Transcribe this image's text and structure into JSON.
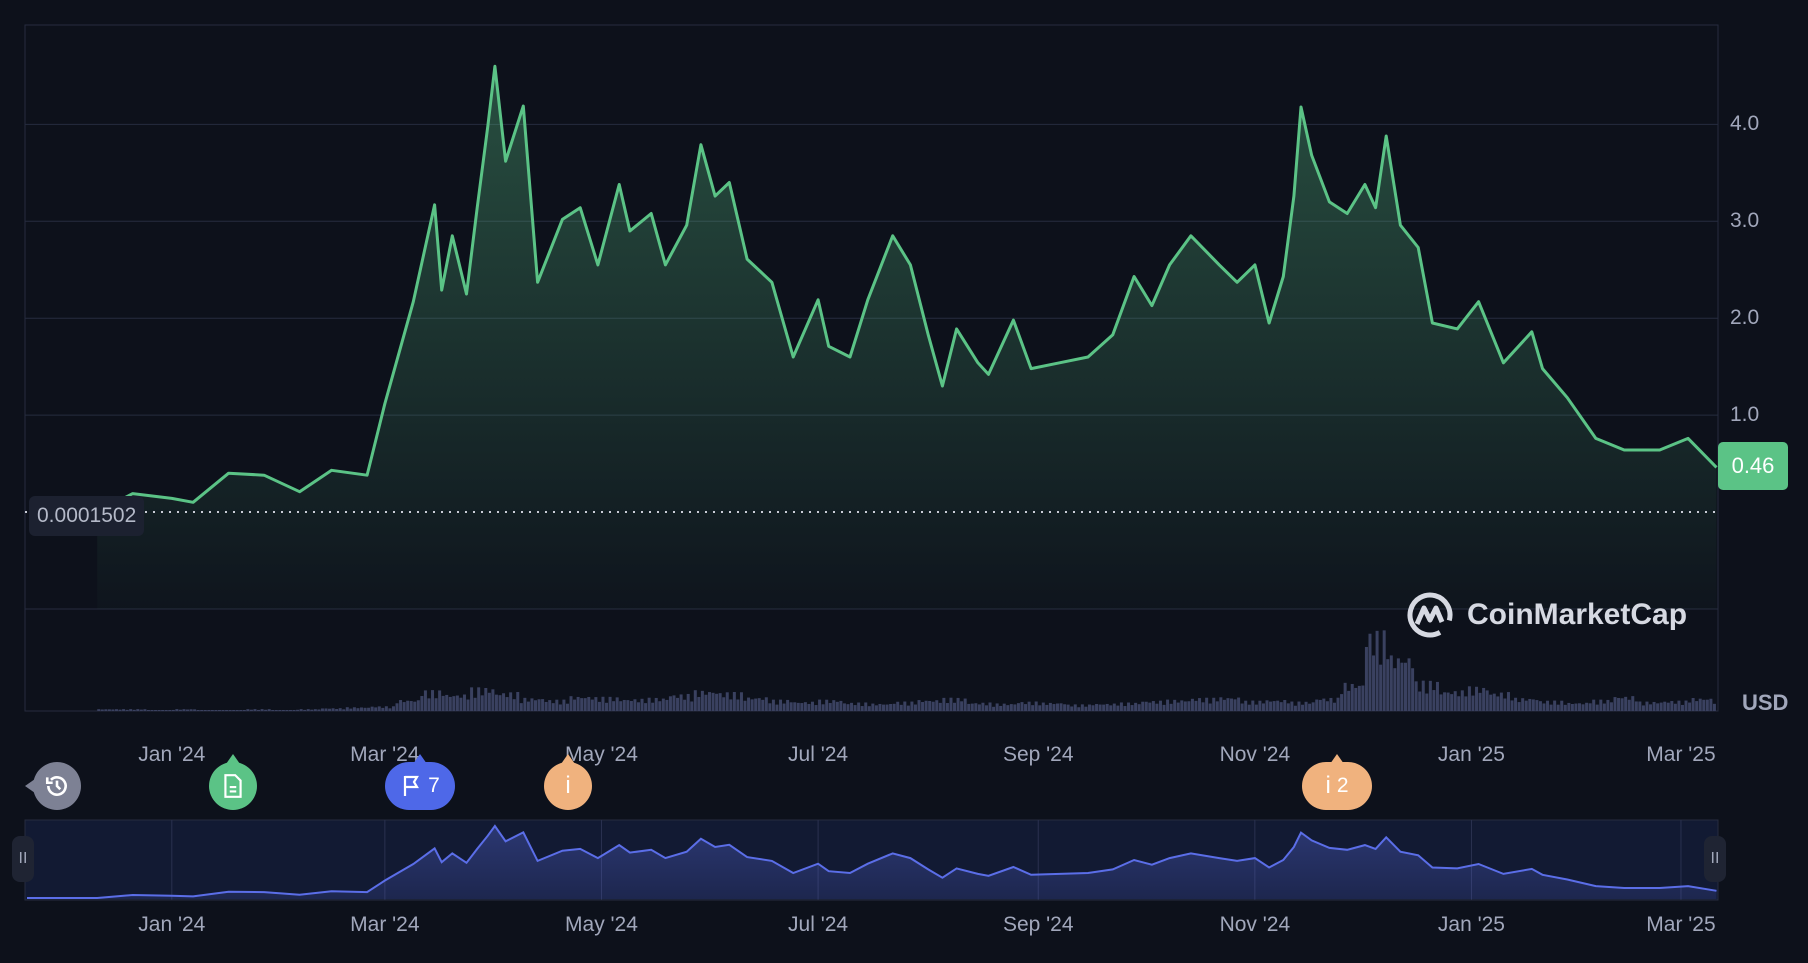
{
  "chart_data": {
    "type": "line",
    "title": "",
    "currency_label": "USD",
    "current_price_label": "0.46",
    "baseline_label": "0.0001502",
    "watermark": "CoinMarketCap",
    "ylim": [
      0,
      4.6
    ],
    "yticks": [
      "1.0",
      "2.0",
      "3.0",
      "4.0"
    ],
    "ytick_values": [
      1,
      2,
      3,
      4
    ],
    "xticks": [
      {
        "label": "Jan '24",
        "date": "2024-01-01"
      },
      {
        "label": "Mar '24",
        "date": "2024-03-01"
      },
      {
        "label": "May '24",
        "date": "2024-05-01"
      },
      {
        "label": "Jul '24",
        "date": "2024-07-01"
      },
      {
        "label": "Sep '24",
        "date": "2024-09-01"
      },
      {
        "label": "Nov '24",
        "date": "2024-11-01"
      },
      {
        "label": "Jan '25",
        "date": "2025-01-01"
      },
      {
        "label": "Mar '25",
        "date": "2025-03-01"
      }
    ],
    "colors": {
      "line": "#5bc386",
      "navigator_line": "#5b6ee8",
      "volume": "#3a4160"
    },
    "series": [
      {
        "name": "Price (USD)",
        "x": [
          "2023-12-11",
          "2023-12-21",
          "2024-01-01",
          "2024-01-07",
          "2024-01-17",
          "2024-01-27",
          "2024-02-06",
          "2024-02-15",
          "2024-02-25",
          "2024-03-01",
          "2024-03-09",
          "2024-03-15",
          "2024-03-17",
          "2024-03-20",
          "2024-03-24",
          "2024-03-27",
          "2024-03-30",
          "2024-04-01",
          "2024-04-04",
          "2024-04-09",
          "2024-04-13",
          "2024-04-20",
          "2024-04-25",
          "2024-04-30",
          "2024-05-06",
          "2024-05-09",
          "2024-05-15",
          "2024-05-19",
          "2024-05-25",
          "2024-05-29",
          "2024-06-02",
          "2024-06-06",
          "2024-06-11",
          "2024-06-18",
          "2024-06-24",
          "2024-07-01",
          "2024-07-04",
          "2024-07-10",
          "2024-07-15",
          "2024-07-22",
          "2024-07-27",
          "2024-08-01",
          "2024-08-05",
          "2024-08-09",
          "2024-08-15",
          "2024-08-18",
          "2024-08-25",
          "2024-08-30",
          "2024-09-07",
          "2024-09-15",
          "2024-09-22",
          "2024-09-28",
          "2024-10-03",
          "2024-10-08",
          "2024-10-14",
          "2024-10-22",
          "2024-10-27",
          "2024-11-01",
          "2024-11-05",
          "2024-11-09",
          "2024-11-12",
          "2024-11-14",
          "2024-11-17",
          "2024-11-22",
          "2024-11-27",
          "2024-12-02",
          "2024-12-05",
          "2024-12-08",
          "2024-12-12",
          "2024-12-17",
          "2024-12-21",
          "2024-12-28",
          "2025-01-03",
          "2025-01-10",
          "2025-01-18",
          "2025-01-21",
          "2025-01-28",
          "2025-02-05",
          "2025-02-13",
          "2025-02-23",
          "2025-03-03",
          "2025-03-11"
        ],
        "values": [
          0.0002,
          0.19,
          0.14,
          0.1,
          0.4,
          0.38,
          0.21,
          0.43,
          0.38,
          1.12,
          2.17,
          3.17,
          2.29,
          2.85,
          2.25,
          3.14,
          3.98,
          4.6,
          3.62,
          4.19,
          2.37,
          3.02,
          3.14,
          2.55,
          3.38,
          2.9,
          3.08,
          2.55,
          2.96,
          3.79,
          3.26,
          3.4,
          2.61,
          2.37,
          1.6,
          2.19,
          1.71,
          1.6,
          2.19,
          2.85,
          2.55,
          1.83,
          1.3,
          1.89,
          1.54,
          1.42,
          1.98,
          1.48,
          1.54,
          1.6,
          1.83,
          2.43,
          2.13,
          2.55,
          2.85,
          2.55,
          2.37,
          2.55,
          1.95,
          2.43,
          3.26,
          4.18,
          3.68,
          3.2,
          3.08,
          3.38,
          3.14,
          3.88,
          2.96,
          2.73,
          1.95,
          1.89,
          2.17,
          1.54,
          1.86,
          1.48,
          1.18,
          0.76,
          0.64,
          0.64,
          0.76,
          0.46
        ]
      }
    ],
    "volume_relative": {
      "start": "2023-12-11",
      "step_days": 7,
      "values": [
        2,
        2,
        1,
        2,
        1,
        1,
        2,
        1,
        2,
        3,
        4,
        5,
        12,
        22,
        18,
        25,
        20,
        14,
        12,
        16,
        15,
        13,
        14,
        18,
        22,
        20,
        15,
        12,
        10,
        12,
        9,
        8,
        10,
        12,
        14,
        9,
        8,
        10,
        9,
        7,
        8,
        9,
        11,
        12,
        14,
        15,
        11,
        12,
        10,
        14,
        30,
        85,
        60,
        32,
        22,
        26,
        20,
        14,
        11,
        9,
        12,
        16,
        10,
        11,
        14,
        10,
        12
      ]
    },
    "legend": "none"
  },
  "events": [
    {
      "icon": "history-icon",
      "label": "",
      "color": "#7d8194"
    },
    {
      "icon": "document-icon",
      "label": "",
      "color": "#5bc386"
    },
    {
      "icon": "flag-icon",
      "label": "7",
      "color": "#4e68e8"
    },
    {
      "icon": "info-icon",
      "label": "",
      "color": "#f0b27e"
    },
    {
      "icon": "info-icon",
      "label": "2",
      "color": "#f0b27e"
    }
  ],
  "navigator": {
    "handle_left": "II",
    "handle_right": "II"
  }
}
